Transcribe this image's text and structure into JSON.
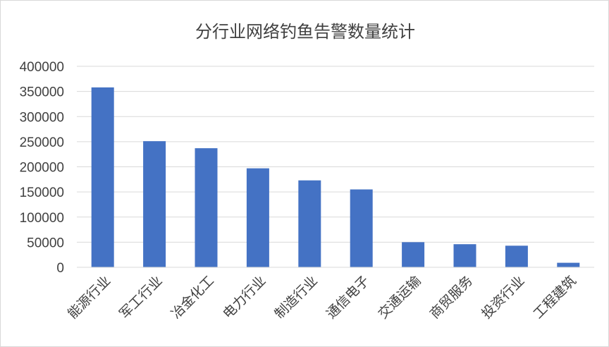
{
  "chart_data": {
    "type": "bar",
    "title": "分行业网络钓鱼告警数量统计",
    "xlabel": "",
    "ylabel": "",
    "categories": [
      "能源行业",
      "军工行业",
      "冶金化工",
      "电力行业",
      "制造行业",
      "通信电子",
      "交通运输",
      "商贸服务",
      "投资行业",
      "工程建筑"
    ],
    "values": [
      358000,
      251000,
      237000,
      197000,
      173000,
      155000,
      50000,
      46000,
      43000,
      9000
    ],
    "ylim": [
      0,
      400000
    ],
    "yticks": [
      "0",
      "50000",
      "100000",
      "150000",
      "200000",
      "250000",
      "300000",
      "350000",
      "400000"
    ],
    "bar_color": "#4472C4",
    "grid": true,
    "legend": "none"
  }
}
